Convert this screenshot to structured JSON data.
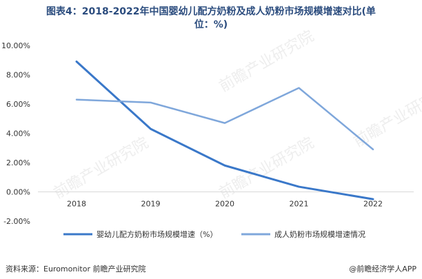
{
  "title_line1": "图表4：2018-2022年中国婴幼儿配方奶粉及成人奶粉市场规模增速对比(单",
  "title_line2": "位：%)",
  "source": "资料来源：Euromonitor 前瞻产业研究院",
  "brand": "@前瞻经济学人APP",
  "watermark": "前瞻产业研究院",
  "colors": {
    "series1": "#3a78c9",
    "series2": "#7fa7db",
    "grid": "#d9d9d9",
    "axis": "#333333"
  },
  "chart_data": {
    "type": "line",
    "x": [
      "2018",
      "2019",
      "2020",
      "2021",
      "2022"
    ],
    "ylim": [
      -2,
      10
    ],
    "yticks": [
      "10.00%",
      "8.00%",
      "6.00%",
      "4.00%",
      "2.00%",
      "0.00%",
      "-2.00%"
    ],
    "grid": false,
    "legend": "bottom",
    "series": [
      {
        "name": "婴幼儿配方奶粉市场规模增速（%）",
        "values": [
          8.9,
          4.3,
          1.8,
          0.35,
          -0.5
        ]
      },
      {
        "name": "成人奶粉市场规模增速情况",
        "values": [
          6.3,
          6.1,
          4.7,
          7.1,
          2.9
        ]
      }
    ]
  }
}
